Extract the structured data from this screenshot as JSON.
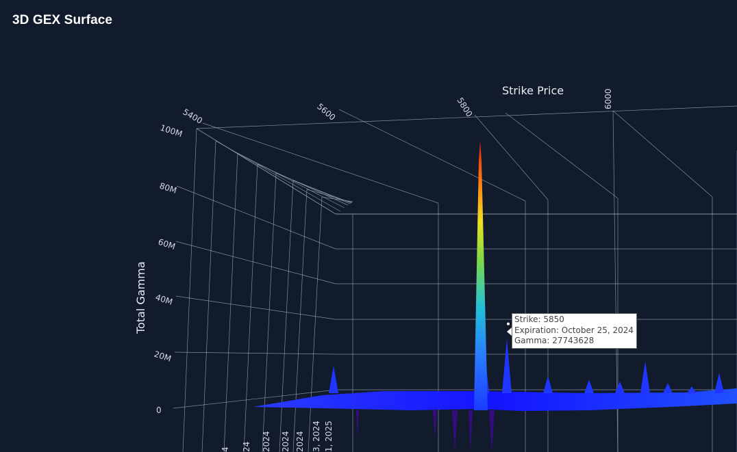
{
  "page": {
    "title": "3D GEX Surface"
  },
  "chart_data": {
    "type": "surface",
    "title": "3D GEX Surface",
    "x_axis": {
      "label": "Strike Price",
      "ticks": [
        "5400",
        "5600",
        "5800",
        "6000"
      ]
    },
    "y_axis": {
      "label": "",
      "ticks": [
        "4",
        "24",
        "2024",
        "2024",
        "2024",
        "3, 2024",
        "1, 2025"
      ]
    },
    "z_axis": {
      "label": "Total Gamma",
      "ticks": [
        "0",
        "20M",
        "40M",
        "60M",
        "80M",
        "100M"
      ],
      "range": [
        0,
        100000000
      ]
    },
    "peak": {
      "strike": 5800,
      "gamma": 100000000
    },
    "tooltip": {
      "strike_label": "Strike: 5850",
      "expiration_label": "Expiration: October 25, 2024",
      "gamma_label": "Gamma: 27743628",
      "strike": 5850,
      "expiration": "October 25, 2024",
      "gamma": 27743628
    },
    "colorscale": [
      "#4a007a",
      "#1010ff",
      "#2a7bff",
      "#22c0d8",
      "#7ad84a",
      "#f0e020",
      "#ff7a10",
      "#d62010"
    ]
  }
}
